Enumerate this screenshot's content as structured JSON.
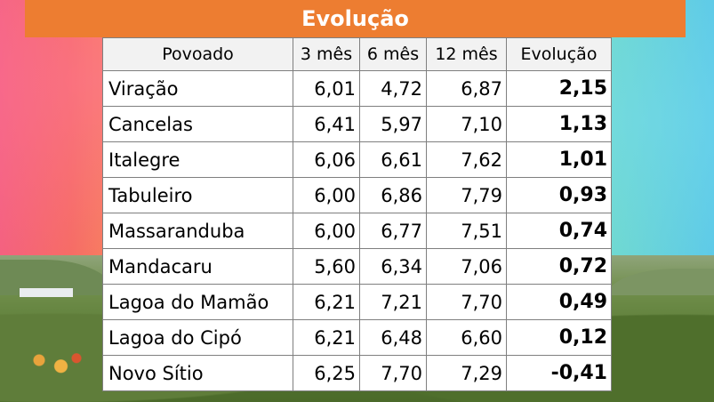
{
  "title": "Evolução",
  "table": {
    "headers": [
      "Povoado",
      "3 mês",
      "6 mês",
      "12 mês",
      "Evolução"
    ],
    "rows": [
      {
        "povoado": "Viração",
        "m3": "6,01",
        "m6": "4,72",
        "m12": "6,87",
        "evolucao": "2,15"
      },
      {
        "povoado": "Cancelas",
        "m3": "6,41",
        "m6": "5,97",
        "m12": "7,10",
        "evolucao": "1,13"
      },
      {
        "povoado": "Italegre",
        "m3": "6,06",
        "m6": "6,61",
        "m12": "7,62",
        "evolucao": "1,01"
      },
      {
        "povoado": "Tabuleiro",
        "m3": "6,00",
        "m6": "6,86",
        "m12": "7,79",
        "evolucao": "0,93"
      },
      {
        "povoado": "Massaranduba",
        "m3": "6,00",
        "m6": "6,77",
        "m12": "7,51",
        "evolucao": "0,74"
      },
      {
        "povoado": "Mandacaru",
        "m3": "5,60",
        "m6": "6,34",
        "m12": "7,06",
        "evolucao": "0,72"
      },
      {
        "povoado": "Lagoa do Mamão",
        "m3": "6,21",
        "m6": "7,21",
        "m12": "7,70",
        "evolucao": "0,49"
      },
      {
        "povoado": "Lagoa do Cipó",
        "m3": "6,21",
        "m6": "6,48",
        "m12": "6,60",
        "evolucao": "0,12"
      },
      {
        "povoado": "Novo Sítio",
        "m3": "6,25",
        "m6": "7,70",
        "m12": "7,29",
        "evolucao": "-0,41"
      }
    ]
  },
  "colors": {
    "title_bar": "#ed7d31",
    "header_bg": "#f2f2f2",
    "border": "#7f7f7f"
  }
}
